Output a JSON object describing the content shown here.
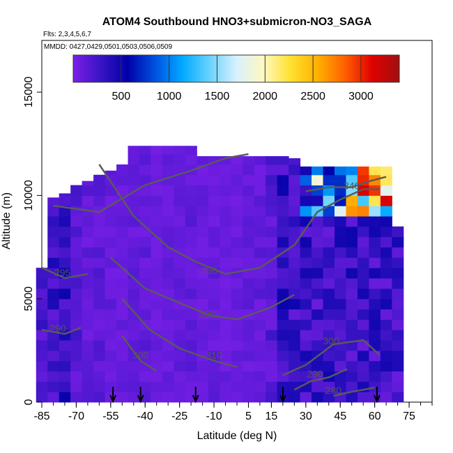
{
  "chart_data": {
    "type": "heatmap",
    "title": "ATOM4 Southbound HNO3+submicron-NO3_SAGA",
    "flights_note": "Flts: 2,3,4,5,6,7",
    "dates_note": "MMDD: 0427,0429,0501,0503,0506,0509",
    "xlabel": "Latitude (deg N)",
    "ylabel": "Altitude (m)",
    "xlim": [
      -85,
      85
    ],
    "ylim": [
      0,
      17500
    ],
    "x_ticks": [
      -85,
      -70,
      -55,
      -40,
      -25,
      -10,
      5,
      15,
      30,
      45,
      60,
      75
    ],
    "x_tick_labels": [
      "-85",
      "-70",
      "-55",
      "-40",
      "-25",
      "-10",
      "5",
      "15",
      "30",
      "45",
      "60",
      "75"
    ],
    "y_ticks": [
      0,
      5000,
      10000,
      15000
    ],
    "y_tick_labels": [
      "0",
      "5000",
      "10000",
      "15000"
    ],
    "colorbar": {
      "range": [
        0,
        3400
      ],
      "ticks": [
        500,
        1000,
        1500,
        2000,
        2500,
        3000
      ],
      "tick_labels": [
        "500",
        "1000",
        "1500",
        "2000",
        "2500",
        "3000"
      ],
      "colors": [
        "#7b1fe8",
        "#3a14c4",
        "#0000a8",
        "#0050e0",
        "#00a8ff",
        "#66d2ff",
        "#d8f0ff",
        "#fff8c0",
        "#ffe030",
        "#ffb000",
        "#ff6000",
        "#e00000",
        "#a01010"
      ]
    },
    "profile_markers_lat": [
      -54,
      -42,
      -18,
      20,
      61
    ],
    "columns": [
      {
        "lat": -85,
        "top": 6500,
        "value": 200
      },
      {
        "lat": -80,
        "top": 9900,
        "value": 250
      },
      {
        "lat": -75,
        "top": 10100,
        "value": 300
      },
      {
        "lat": -70,
        "top": 10500,
        "value": 150
      },
      {
        "lat": -65,
        "top": 10700,
        "value": 100
      },
      {
        "lat": -60,
        "top": 11000,
        "value": 120
      },
      {
        "lat": -55,
        "top": 11200,
        "value": 100
      },
      {
        "lat": -50,
        "top": 11500,
        "value": 80
      },
      {
        "lat": -45,
        "top": 12400,
        "value": 90
      },
      {
        "lat": -40,
        "top": 12400,
        "value": 100
      },
      {
        "lat": -35,
        "top": 12400,
        "value": 70
      },
      {
        "lat": -30,
        "top": 12400,
        "value": 80
      },
      {
        "lat": -25,
        "top": 12400,
        "value": 90
      },
      {
        "lat": -20,
        "top": 12400,
        "value": 100
      },
      {
        "lat": -15,
        "top": 11900,
        "value": 80
      },
      {
        "lat": -10,
        "top": 11900,
        "value": 90
      },
      {
        "lat": -5,
        "top": 11900,
        "value": 70
      },
      {
        "lat": 0,
        "top": 11900,
        "value": 80
      },
      {
        "lat": 5,
        "top": 11900,
        "value": 90
      },
      {
        "lat": 10,
        "top": 11900,
        "value": 100
      },
      {
        "lat": 15,
        "top": 11900,
        "value": 150
      },
      {
        "lat": 20,
        "top": 11900,
        "value": 300
      },
      {
        "lat": 25,
        "top": 11800,
        "value": 250
      },
      {
        "lat": 30,
        "top": 11400,
        "value": 600
      },
      {
        "lat": 35,
        "top": 11400,
        "value": 1100
      },
      {
        "lat": 40,
        "top": 11400,
        "value": 900
      },
      {
        "lat": 45,
        "top": 11400,
        "value": 1000
      },
      {
        "lat": 50,
        "top": 11400,
        "value": 1900
      },
      {
        "lat": 55,
        "top": 11400,
        "value": 2700
      },
      {
        "lat": 60,
        "top": 11400,
        "value": 3100
      },
      {
        "lat": 65,
        "top": 11400,
        "value": 2200
      },
      {
        "lat": 70,
        "top": 8500,
        "value": 300
      }
    ],
    "contour_labels": [
      {
        "text": "340",
        "lat": 50,
        "alt": 10300
      },
      {
        "text": "330",
        "lat": -12,
        "alt": 6200
      },
      {
        "text": "320",
        "lat": -13,
        "alt": 4100
      },
      {
        "text": "310",
        "lat": -10,
        "alt": 2100
      },
      {
        "text": "300",
        "lat": -42,
        "alt": 2100
      },
      {
        "text": "300",
        "lat": 41,
        "alt": 2800
      },
      {
        "text": "295",
        "lat": -76,
        "alt": 6100
      },
      {
        "text": "290",
        "lat": -78,
        "alt": 3400
      },
      {
        "text": "290",
        "lat": 34,
        "alt": 1200
      },
      {
        "text": "280",
        "lat": 42,
        "alt": 400
      }
    ]
  }
}
